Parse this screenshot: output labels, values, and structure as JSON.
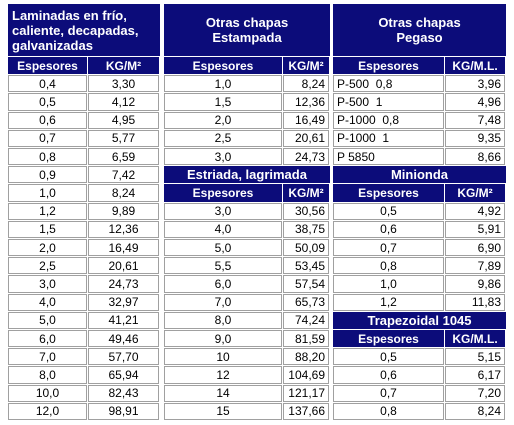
{
  "groups": [
    {
      "blocks": [
        {
          "title": "Laminadas en frío,\ncaliente, decapadas,\ngalvanizadas",
          "headers": [
            "Espesores",
            "KG/M²"
          ],
          "rows": [
            [
              "0,4",
              "3,30"
            ],
            [
              "0,5",
              "4,12"
            ],
            [
              "0,6",
              "4,95"
            ],
            [
              "0,7",
              "5,77"
            ],
            [
              "0,8",
              "6,59"
            ],
            [
              "0,9",
              "7,42"
            ],
            [
              "1,0",
              "8,24"
            ],
            [
              "1,2",
              "9,89"
            ],
            [
              "1,5",
              "12,36"
            ],
            [
              "2,0",
              "16,49"
            ],
            [
              "2,5",
              "20,61"
            ],
            [
              "3,0",
              "24,73"
            ],
            [
              "4,0",
              "32,97"
            ],
            [
              "5,0",
              "41,21"
            ],
            [
              "6,0",
              "49,46"
            ],
            [
              "7,0",
              "57,70"
            ],
            [
              "8,0",
              "65,94"
            ],
            [
              "10,0",
              "82,43"
            ],
            [
              "12,0",
              "98,91"
            ]
          ]
        }
      ]
    },
    {
      "blocks": [
        {
          "title": "Otras chapas\nEstampada",
          "headers": [
            "Espesores",
            "KG/M²"
          ],
          "rows": [
            [
              "1,0",
              "8,24"
            ],
            [
              "1,5",
              "12,36"
            ],
            [
              "2,0",
              "16,49"
            ],
            [
              "2,5",
              "20,61"
            ],
            [
              "3,0",
              "24,73"
            ]
          ]
        },
        {
          "title": "Estriada, lagrimada",
          "headers": [
            "Espesores",
            "KG/M²"
          ],
          "rows": [
            [
              "3,0",
              "30,56"
            ],
            [
              "4,0",
              "38,75"
            ],
            [
              "5,0",
              "50,09"
            ],
            [
              "5,5",
              "53,45"
            ],
            [
              "6,0",
              "57,54"
            ],
            [
              "7,0",
              "65,73"
            ],
            [
              "8,0",
              "74,24"
            ],
            [
              "9,0",
              "81,59"
            ],
            [
              "10",
              "88,20"
            ],
            [
              "12",
              "104,69"
            ],
            [
              "14",
              "121,17"
            ],
            [
              "15",
              "137,66"
            ]
          ]
        }
      ]
    },
    {
      "blocks": [
        {
          "title": "Otras chapas\nPegaso",
          "headers": [
            "Espesores",
            "KG/M.L."
          ],
          "rows": [
            [
              "P-500  0,8",
              "3,96"
            ],
            [
              "P-500  1",
              "4,96"
            ],
            [
              "P-1000  0,8",
              "7,48"
            ],
            [
              "P-1000  1",
              "9,35"
            ],
            [
              "P 5850",
              "8,66"
            ]
          ]
        },
        {
          "title": "Minionda",
          "headers": [
            "Espesores",
            "KG/M²"
          ],
          "rows": [
            [
              "0,5",
              "4,92"
            ],
            [
              "0,6",
              "5,91"
            ],
            [
              "0,7",
              "6,90"
            ],
            [
              "0,8",
              "7,89"
            ],
            [
              "1,0",
              "9,86"
            ],
            [
              "1,2",
              "11,83"
            ]
          ]
        },
        {
          "title": "Trapezoidal 1045",
          "headers": [
            "Espesores",
            "KG/M.L."
          ],
          "rows": [
            [
              "0,5",
              "5,15"
            ],
            [
              "0,6",
              "6,17"
            ],
            [
              "0,7",
              "7,20"
            ],
            [
              "0,8",
              "8,24"
            ]
          ]
        }
      ]
    }
  ]
}
